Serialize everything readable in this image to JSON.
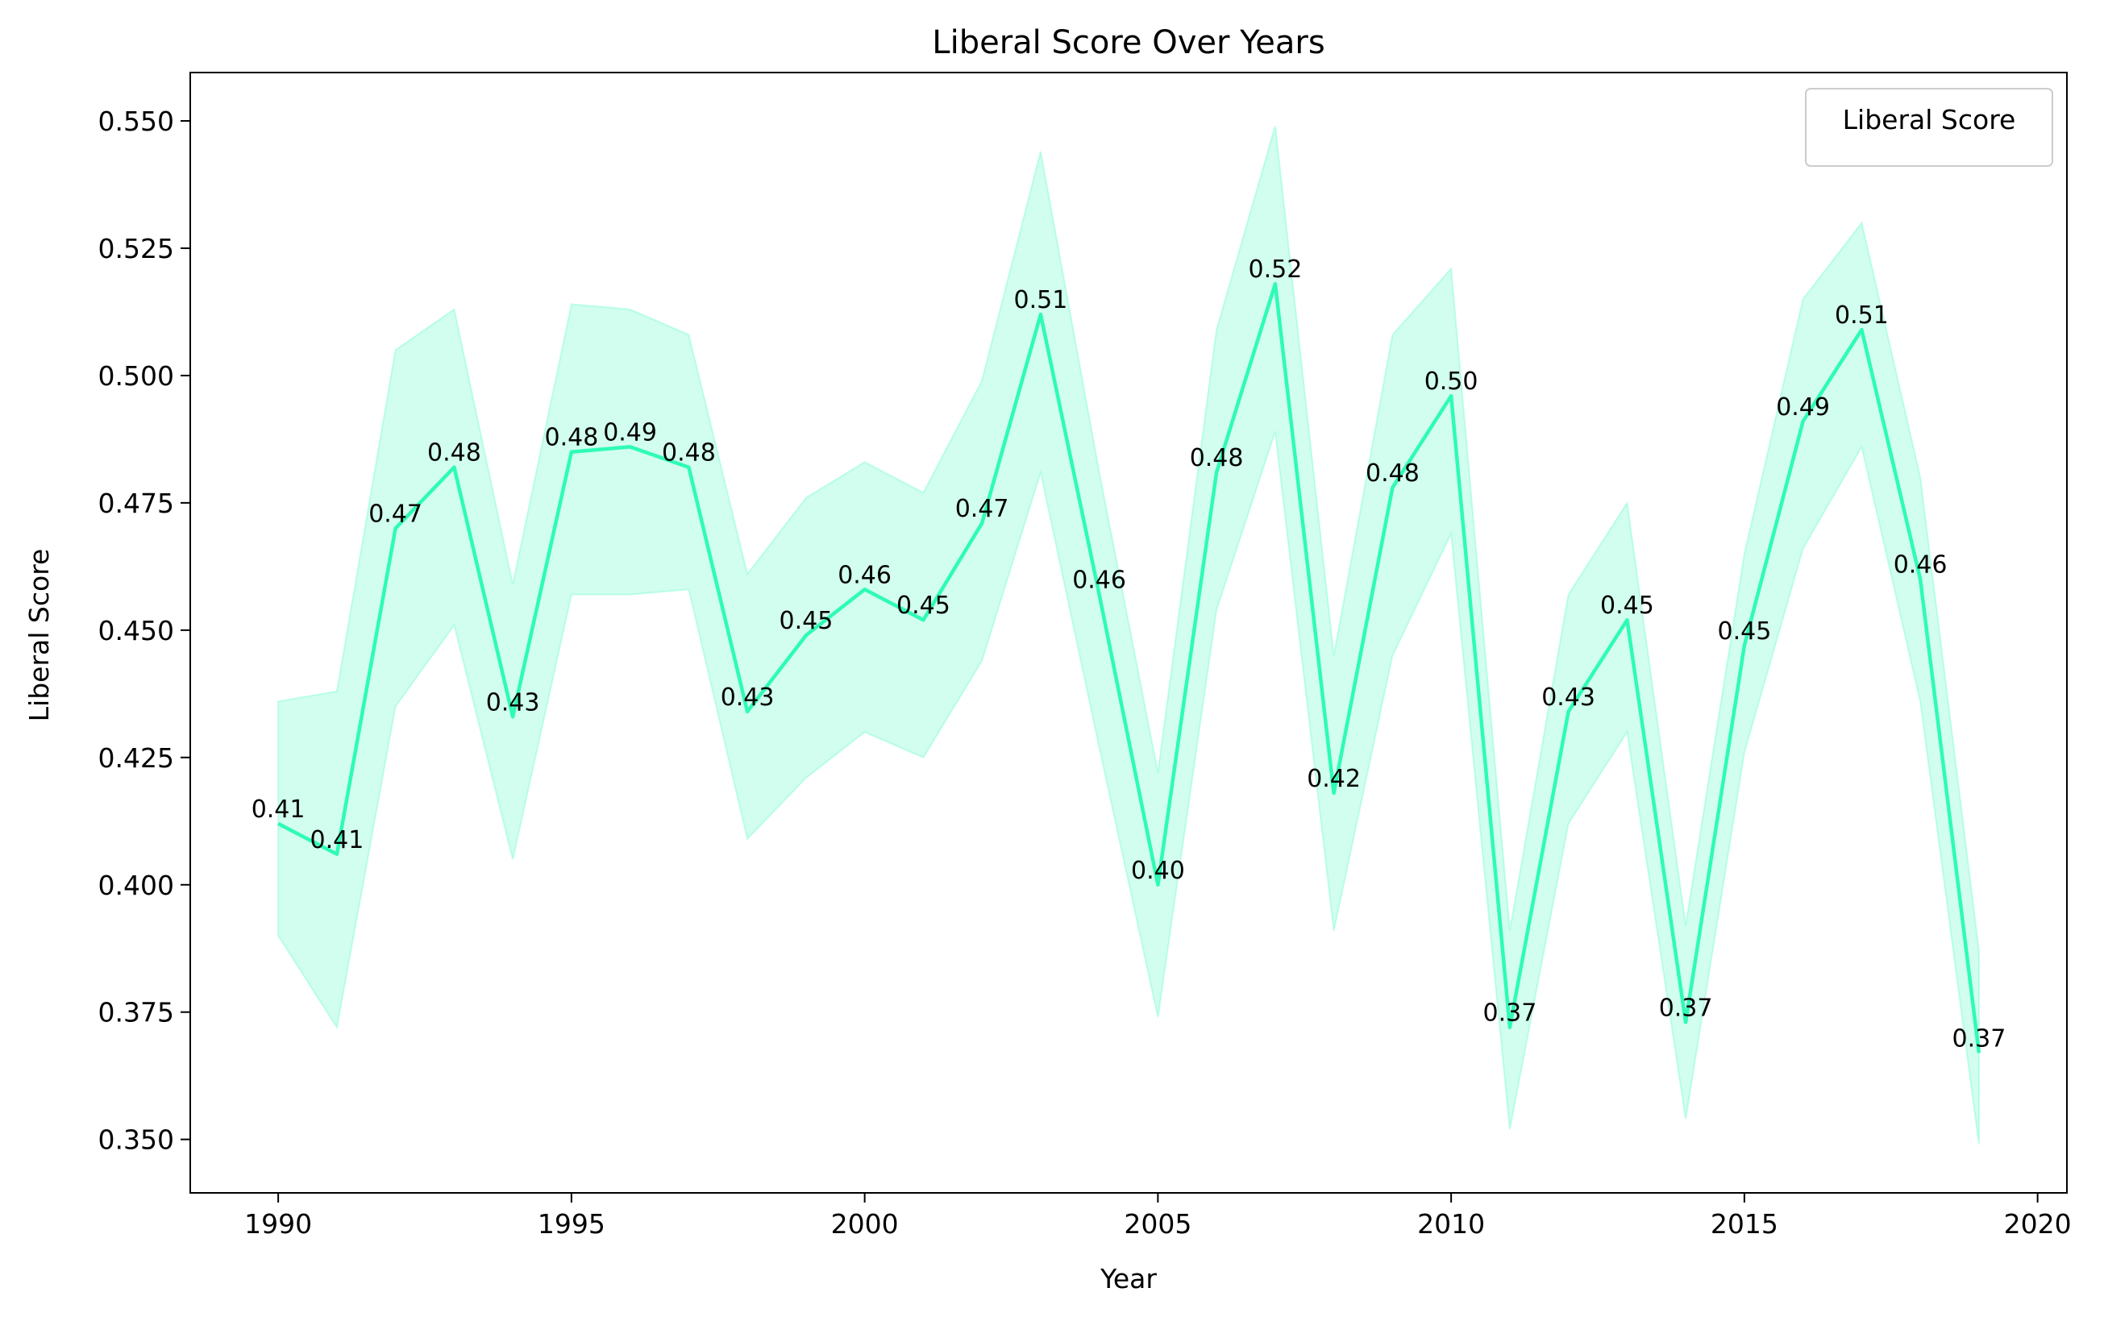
{
  "chart_data": {
    "type": "line",
    "title": "Liberal Score Over Years",
    "xlabel": "Year",
    "ylabel": "Liberal Score",
    "xlim": [
      1988.5,
      2020.5
    ],
    "ylim": [
      0.3395,
      0.5595
    ],
    "xticks": [
      1990,
      1995,
      2000,
      2005,
      2010,
      2015,
      2020
    ],
    "xtick_labels": [
      "1990",
      "1995",
      "2000",
      "2005",
      "2010",
      "2015",
      "2020"
    ],
    "yticks": [
      0.35,
      0.375,
      0.4,
      0.425,
      0.45,
      0.475,
      0.5,
      0.525,
      0.55
    ],
    "ytick_labels": [
      "0.350",
      "0.375",
      "0.400",
      "0.425",
      "0.450",
      "0.475",
      "0.500",
      "0.525",
      "0.550"
    ],
    "legend": {
      "title": "Liberal Score",
      "placement": "top-right"
    },
    "grid": false,
    "colors": {
      "line": "#2efbb4",
      "band": "#2efbb4"
    },
    "series": [
      {
        "x": [
          1990,
          1991,
          1992,
          1993,
          1994,
          1995,
          1996,
          1997,
          1998,
          1999,
          2000,
          2001,
          2002,
          2003,
          2004,
          2005,
          2006,
          2007,
          2008,
          2009,
          2010,
          2011,
          2012,
          2013,
          2014,
          2015,
          2016,
          2017,
          2018,
          2019
        ],
        "values": [
          0.412,
          0.406,
          0.47,
          0.482,
          0.433,
          0.485,
          0.486,
          0.482,
          0.434,
          0.449,
          0.458,
          0.452,
          0.471,
          0.512,
          0.457,
          0.4,
          0.481,
          0.518,
          0.418,
          0.478,
          0.496,
          0.372,
          0.434,
          0.452,
          0.373,
          0.447,
          0.491,
          0.509,
          0.46,
          0.367
        ],
        "band_upper": [
          0.436,
          0.438,
          0.505,
          0.513,
          0.459,
          0.514,
          0.513,
          0.508,
          0.461,
          0.476,
          0.483,
          0.477,
          0.499,
          0.544,
          0.481,
          0.422,
          0.509,
          0.549,
          0.445,
          0.508,
          0.521,
          0.391,
          0.457,
          0.475,
          0.392,
          0.465,
          0.515,
          0.53,
          0.48,
          0.387
        ],
        "band_lower": [
          0.39,
          0.372,
          0.435,
          0.451,
          0.405,
          0.457,
          0.457,
          0.458,
          0.409,
          0.421,
          0.43,
          0.425,
          0.444,
          0.481,
          0.427,
          0.374,
          0.454,
          0.489,
          0.391,
          0.445,
          0.469,
          0.352,
          0.412,
          0.43,
          0.354,
          0.426,
          0.466,
          0.486,
          0.436,
          0.349
        ],
        "labels": [
          "0.41",
          "0.41",
          "0.47",
          "0.48",
          "0.43",
          "0.48",
          "0.49",
          "0.48",
          "0.43",
          "0.45",
          "0.46",
          "0.45",
          "0.47",
          "0.51",
          "0.46",
          "0.40",
          "0.48",
          "0.52",
          "0.42",
          "0.48",
          "0.50",
          "0.37",
          "0.43",
          "0.45",
          "0.37",
          "0.45",
          "0.49",
          "0.51",
          "0.46",
          "0.37"
        ]
      }
    ]
  }
}
